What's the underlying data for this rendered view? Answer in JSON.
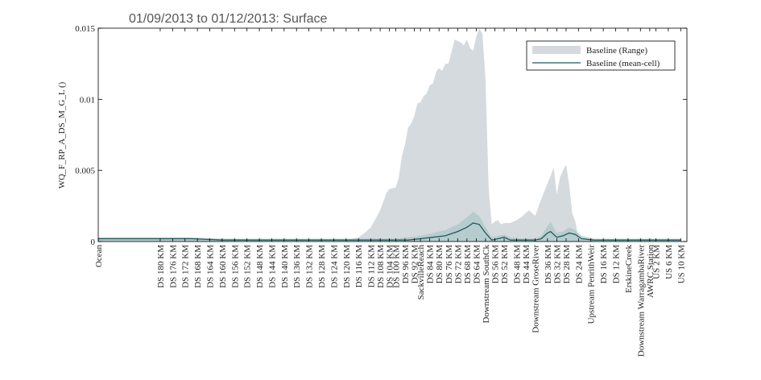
{
  "chart_data": {
    "type": "area",
    "title": "01/09/2013 to 01/12/2013: Surface",
    "ylabel": "WQ_F_RP_A_DS_M_G_L ()",
    "ylim": [
      0,
      0.015
    ],
    "y_ticks": [
      0,
      0.005,
      0.01,
      0.015
    ],
    "y_tick_labels": [
      "0",
      "0.005",
      "0.01",
      "0.015"
    ],
    "grid": false,
    "legend_position": "top-right",
    "colors": {
      "range_fill": "#d5dade",
      "mean_line": "#1f5a5a",
      "axis": "#000000"
    },
    "x_ticks": [
      {
        "label": "Ocean",
        "x": 0
      },
      {
        "label": "DS 180 KM",
        "x": 20
      },
      {
        "label": "DS 176 KM",
        "x": 24
      },
      {
        "label": "DS 172 KM",
        "x": 28
      },
      {
        "label": "DS 168 KM",
        "x": 32
      },
      {
        "label": "DS 164 KM",
        "x": 36
      },
      {
        "label": "DS 160 KM",
        "x": 40
      },
      {
        "label": "DS 156 KM",
        "x": 44
      },
      {
        "label": "DS 152 KM",
        "x": 48
      },
      {
        "label": "DS 148 KM",
        "x": 52
      },
      {
        "label": "DS 144 KM",
        "x": 56
      },
      {
        "label": "DS 140 KM",
        "x": 60
      },
      {
        "label": "DS 136 KM",
        "x": 64
      },
      {
        "label": "DS 132 KM",
        "x": 68
      },
      {
        "label": "DS 128 KM",
        "x": 72
      },
      {
        "label": "DS 124 KM",
        "x": 76
      },
      {
        "label": "DS 120 KM",
        "x": 80
      },
      {
        "label": "DS 116 KM",
        "x": 84
      },
      {
        "label": "DS 112 KM",
        "x": 88
      },
      {
        "label": "DS 108 KM",
        "x": 91
      },
      {
        "label": "DS 104 KM",
        "x": 94
      },
      {
        "label": "DS 100 KM",
        "x": 96
      },
      {
        "label": "DS 96 KM",
        "x": 99
      },
      {
        "label": "DS 92 KM",
        "x": 102
      },
      {
        "label": "SackvilleReach",
        "x": 104
      },
      {
        "label": "DS 84 KM",
        "x": 107
      },
      {
        "label": "DS 80 KM",
        "x": 110
      },
      {
        "label": "DS 76 KM",
        "x": 113
      },
      {
        "label": "DS 72 KM",
        "x": 116
      },
      {
        "label": "DS 68 KM",
        "x": 119
      },
      {
        "label": "DS 64 KM",
        "x": 122
      },
      {
        "label": "Downstream SouthCk",
        "x": 125
      },
      {
        "label": "DS 56 KM",
        "x": 128
      },
      {
        "label": "DS 52 KM",
        "x": 131
      },
      {
        "label": "DS 48 KM",
        "x": 135
      },
      {
        "label": "DS 44 KM",
        "x": 138
      },
      {
        "label": "Downstream GroseRiver",
        "x": 141
      },
      {
        "label": "DS 36 KM",
        "x": 145
      },
      {
        "label": "DS 32 KM",
        "x": 148
      },
      {
        "label": "DS 28 KM",
        "x": 151
      },
      {
        "label": "DS 24 KM",
        "x": 155
      },
      {
        "label": "Upstream PenrithWeir",
        "x": 159
      },
      {
        "label": "DS 16 KM",
        "x": 163
      },
      {
        "label": "DS 12 KM",
        "x": 167
      },
      {
        "label": "ErskineCreek",
        "x": 171
      },
      {
        "label": "Downstream WarragambaRiver",
        "x": 175
      },
      {
        "label": "AWRC Station",
        "x": 178
      },
      {
        "label": "US 2 KM",
        "x": 180
      },
      {
        "label": "US 6 KM",
        "x": 184
      },
      {
        "label": "US 10 KM",
        "x": 188
      }
    ],
    "series": [
      {
        "name": "Baseline (Range)",
        "type": "band",
        "x": [
          0,
          20,
          40,
          60,
          76,
          80,
          82,
          84,
          86,
          88,
          89,
          90,
          91,
          92,
          93,
          94,
          96,
          97,
          98,
          99,
          100,
          101,
          102,
          103,
          104,
          105,
          106,
          107,
          108,
          109,
          110,
          111,
          112,
          113,
          114,
          115,
          116,
          117,
          118,
          119,
          120,
          121,
          122,
          123,
          124,
          125,
          126,
          127,
          128,
          129,
          130,
          131,
          133,
          135,
          137,
          139,
          141,
          143,
          145,
          146,
          147,
          148,
          149,
          150,
          151,
          152,
          153,
          154,
          155,
          157,
          160,
          170,
          188
        ],
        "upper": [
          0.0002,
          0.0002,
          0.0002,
          0.0001,
          0.0001,
          0.0001,
          0.0002,
          0.0003,
          0.0006,
          0.001,
          0.0014,
          0.0018,
          0.0022,
          0.0028,
          0.0034,
          0.0037,
          0.0038,
          0.0045,
          0.006,
          0.0068,
          0.008,
          0.0083,
          0.0088,
          0.0097,
          0.0098,
          0.0102,
          0.0104,
          0.011,
          0.0111,
          0.0119,
          0.0122,
          0.012,
          0.0125,
          0.0125,
          0.0133,
          0.0142,
          0.0141,
          0.014,
          0.0138,
          0.0142,
          0.0136,
          0.0134,
          0.0144,
          0.015,
          0.0146,
          0.0114,
          0.0038,
          0.0012,
          0.0014,
          0.0015,
          0.0012,
          0.0013,
          0.0013,
          0.0015,
          0.0018,
          0.0022,
          0.0018,
          0.003,
          0.0041,
          0.0046,
          0.0052,
          0.0033,
          0.0045,
          0.005,
          0.0054,
          0.004,
          0.002,
          0.0014,
          0.0002,
          0.0001,
          0.0001,
          0.0001,
          0.0001
        ],
        "lower": [
          0,
          0,
          0,
          0,
          0,
          0,
          0,
          0,
          0,
          0,
          0,
          0,
          0,
          0,
          0,
          0,
          0,
          0,
          0,
          0,
          0,
          0,
          0,
          0,
          0,
          0,
          0,
          0,
          0,
          0,
          0,
          0,
          0,
          0,
          0,
          0,
          0,
          0,
          0,
          0,
          0,
          0,
          0,
          0,
          0,
          0,
          0,
          0,
          0,
          0,
          0,
          0,
          0,
          0,
          0,
          0,
          0,
          0,
          0,
          0,
          0,
          0,
          0,
          0,
          0,
          0,
          0,
          0,
          0,
          0,
          0,
          0,
          0
        ]
      },
      {
        "name": "Baseline (mean-cell)",
        "type": "line",
        "x": [
          0,
          10,
          20,
          30,
          40,
          50,
          60,
          70,
          80,
          88,
          95,
          100,
          104,
          108,
          112,
          116,
          119,
          121,
          123,
          125,
          127,
          129,
          131,
          133,
          137,
          141,
          143,
          145,
          146,
          148,
          150,
          152,
          154,
          156,
          160,
          170,
          188
        ],
        "y": [
          0.0002,
          0.0002,
          0.0002,
          0.0002,
          0.0001,
          0.0001,
          0.0001,
          0.0001,
          0.0001,
          0.0001,
          0.0001,
          0.0001,
          0.0002,
          0.0003,
          0.0004,
          0.0007,
          0.001,
          0.0013,
          0.0012,
          0.0006,
          0.0001,
          0.0002,
          0.0003,
          0.0001,
          0.0001,
          0.0001,
          0.0002,
          0.0006,
          0.0007,
          0.0003,
          0.0004,
          0.0006,
          0.0005,
          0.0002,
          0.0001,
          0.0001,
          0.0001
        ],
        "band_upper": [
          0.0003,
          0.0003,
          0.0003,
          0.0003,
          0.0002,
          0.0002,
          0.0002,
          0.0002,
          0.0002,
          0.0002,
          0.0002,
          0.0003,
          0.0004,
          0.0006,
          0.0008,
          0.0012,
          0.0017,
          0.0021,
          0.0018,
          0.001,
          0.0003,
          0.0004,
          0.0005,
          0.0003,
          0.0002,
          0.0002,
          0.0004,
          0.0011,
          0.0014,
          0.0006,
          0.0007,
          0.001,
          0.0008,
          0.0004,
          0.0002,
          0.0002,
          0.0002
        ]
      }
    ]
  }
}
